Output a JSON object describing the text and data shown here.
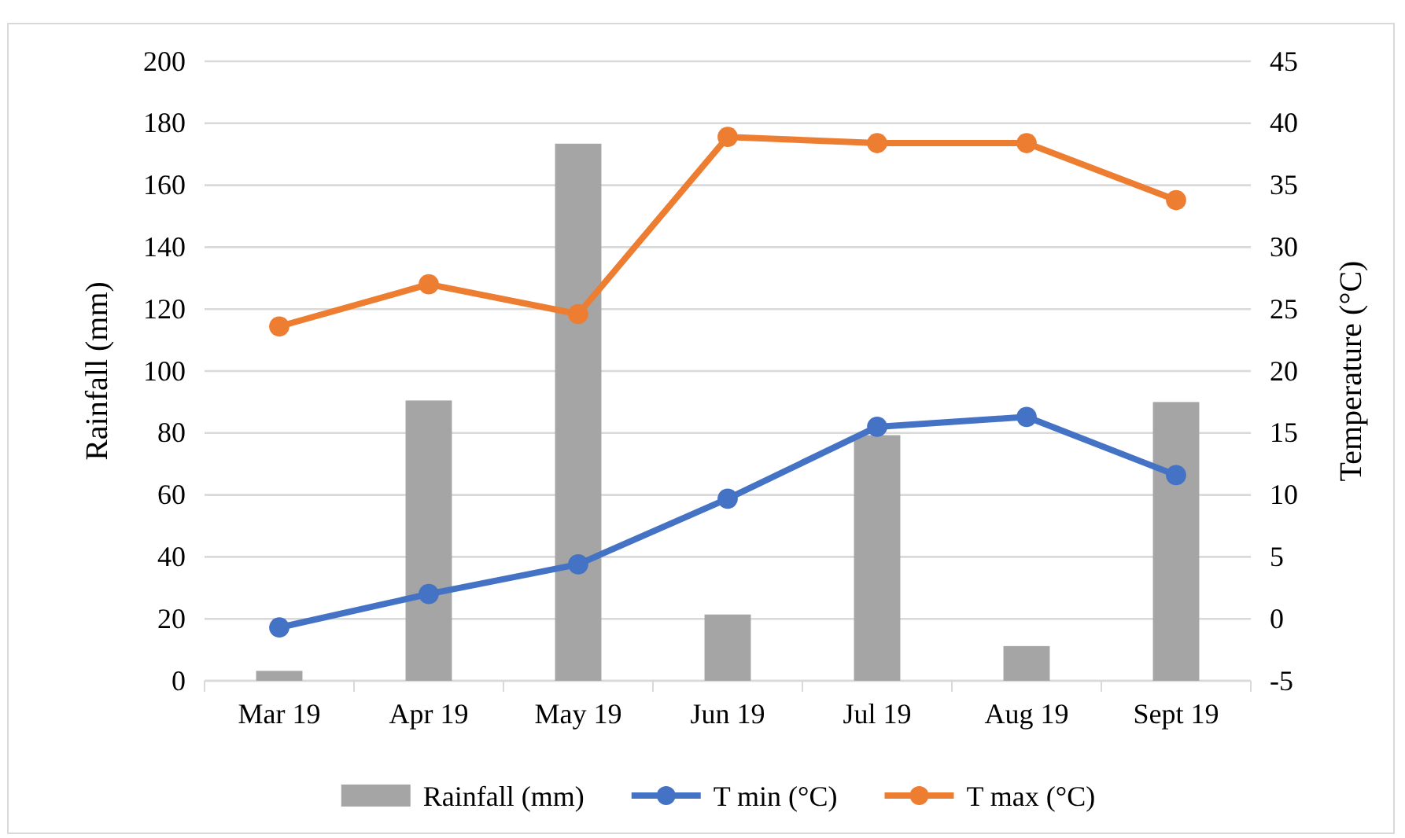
{
  "chart_data": {
    "type": "bar",
    "categories": [
      "Mar 19",
      "Apr 19",
      "May 19",
      "Jun 19",
      "Jul 19",
      "Aug 19",
      "Sept 19"
    ],
    "ylabel": "Rainfall (mm)",
    "y2label": "Temperature (°C)",
    "ylim": [
      0,
      200
    ],
    "yticks": [
      0,
      20,
      40,
      60,
      80,
      100,
      120,
      140,
      160,
      180,
      200
    ],
    "y2lim": [
      -5,
      45
    ],
    "y2ticks": [
      -5,
      0,
      5,
      10,
      15,
      20,
      25,
      30,
      35,
      40,
      45
    ],
    "grid": "y",
    "legend": "bottom",
    "marker": "circle",
    "series": [
      {
        "name": "Rainfall (mm)",
        "color": "#a5a5a5",
        "values": [
          3.2,
          90.5,
          173.4,
          21.4,
          79.3,
          11.2,
          90
        ]
      },
      {
        "name": "T min (°C)",
        "type": "line",
        "axis": "y2",
        "color": "#4472c4",
        "values": [
          -0.7,
          2.0,
          4.4,
          9.7,
          15.5,
          16.3,
          11.6
        ]
      },
      {
        "name": "T max (°C)",
        "type": "line",
        "axis": "y2",
        "color": "#ed7d31",
        "values": [
          23.6,
          27.0,
          24.6,
          38.9,
          38.4,
          38.4,
          33.8
        ]
      }
    ]
  }
}
